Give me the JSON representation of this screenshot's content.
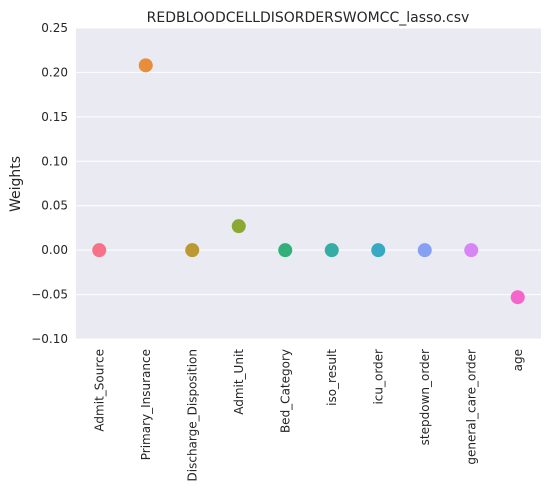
{
  "chart_data": {
    "type": "scatter",
    "title": "REDBLOODCELLDISORDERSWOMCC_lasso.csv",
    "xlabel": "",
    "ylabel": "Weights",
    "ylim": [
      -0.1,
      0.25
    ],
    "yticks": [
      "0.25",
      "0.20",
      "0.15",
      "0.10",
      "0.05",
      "0.00",
      "−0.05",
      "−0.10"
    ],
    "grid": true,
    "categories": [
      "Admit_Source",
      "Primary_Insurance",
      "Discharge_Disposition",
      "Admit_Unit",
      "Bed_Category",
      "iso_result",
      "icu_order",
      "stepdown_order",
      "general_care_order",
      "age"
    ],
    "values": [
      0.0,
      0.208,
      0.0,
      0.027,
      0.0,
      0.0,
      0.0,
      0.0,
      0.0,
      -0.053
    ],
    "colors": [
      "#f77189",
      "#e88d3a",
      "#bb9832",
      "#8aa832",
      "#33b07a",
      "#35aca4",
      "#38a9c5",
      "#85a1f4",
      "#d785f4",
      "#f565cc"
    ],
    "background": "#eaeaf2"
  }
}
